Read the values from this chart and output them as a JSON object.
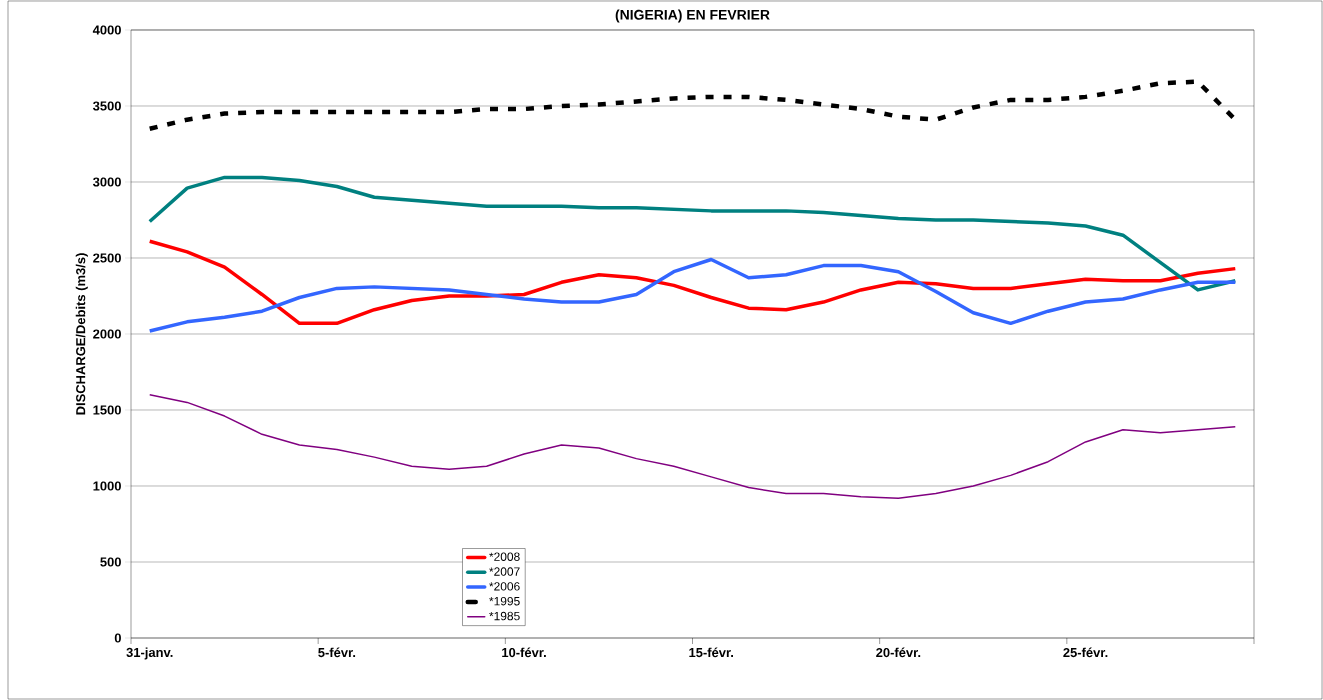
{
  "chart_data": {
    "type": "line",
    "title": "(NIGERIA) EN FEVRIER",
    "ylabel": "DISCHARGE/Debits (m3/s)",
    "categories": [
      "31-janv.",
      null,
      null,
      null,
      null,
      "5-févr.",
      null,
      null,
      null,
      null,
      "10-févr.",
      null,
      null,
      null,
      null,
      "15-févr.",
      null,
      null,
      null,
      null,
      "20-févr.",
      null,
      null,
      null,
      null,
      "25-févr.",
      null,
      null,
      null,
      null
    ],
    "series": [
      {
        "name": "*2008",
        "color": "#ff0000",
        "values": [
          2610,
          2540,
          2440,
          2260,
          2070,
          2070,
          2160,
          2220,
          2250,
          2250,
          2260,
          2340,
          2390,
          2370,
          2320,
          2240,
          2170,
          2160,
          2210,
          2290,
          2340,
          2330,
          2300,
          2300,
          2330,
          2360,
          2350,
          2350,
          2400,
          2430
        ]
      },
      {
        "name": "*2007",
        "color": "#008080",
        "values": [
          2740,
          2960,
          3030,
          3030,
          3010,
          2970,
          2900,
          2880,
          2860,
          2840,
          2840,
          2840,
          2830,
          2830,
          2820,
          2810,
          2810,
          2810,
          2800,
          2780,
          2760,
          2750,
          2750,
          2740,
          2730,
          2710,
          2650,
          2470,
          2290,
          2350
        ]
      },
      {
        "name": "*2006",
        "color": "#3366ff",
        "values": [
          2020,
          2080,
          2110,
          2150,
          2240,
          2300,
          2310,
          2300,
          2290,
          2260,
          2230,
          2210,
          2210,
          2260,
          2410,
          2490,
          2370,
          2390,
          2450,
          2450,
          2410,
          2280,
          2140,
          2070,
          2150,
          2210,
          2230,
          2290,
          2340,
          2340
        ]
      },
      {
        "name": "*1995",
        "color": "#000000",
        "line_style": "dashed",
        "values": [
          3350,
          3410,
          3450,
          3460,
          3460,
          3460,
          3460,
          3460,
          3460,
          3480,
          3480,
          3500,
          3510,
          3530,
          3550,
          3560,
          3560,
          3540,
          3510,
          3480,
          3430,
          3410,
          3490,
          3540,
          3540,
          3560,
          3600,
          3650,
          3660,
          3410
        ]
      },
      {
        "name": "*1985",
        "color": "#800080",
        "values": [
          1600,
          1550,
          1460,
          1340,
          1270,
          1240,
          1190,
          1130,
          1110,
          1130,
          1210,
          1270,
          1250,
          1180,
          1130,
          1060,
          990,
          950,
          950,
          930,
          920,
          950,
          1000,
          1070,
          1160,
          1290,
          1370,
          1350,
          1370,
          1390
        ]
      }
    ],
    "ylim": [
      0,
      4000
    ],
    "yticks": [
      0,
      500,
      1000,
      1500,
      2000,
      2500,
      3000,
      3500,
      4000
    ],
    "grid": "y",
    "legend": "bottom left",
    "line_style": "solid",
    "marker": "none"
  }
}
